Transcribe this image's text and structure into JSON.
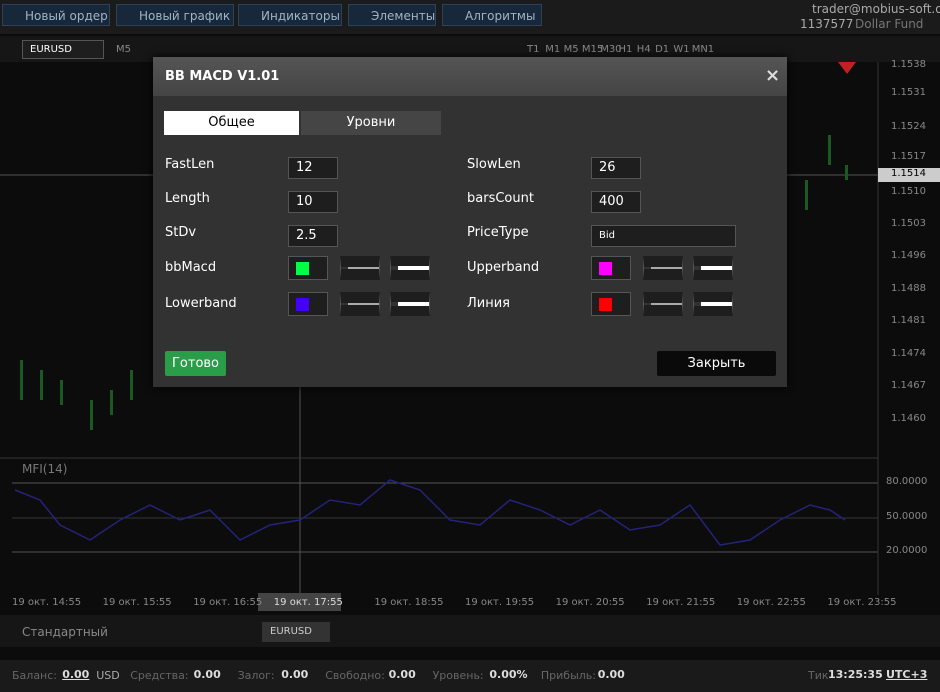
{
  "toolbar": {
    "buttons": [
      "Новый ордер",
      "Новый график",
      "Индикаторы",
      "Элементы",
      "Алгоритмы"
    ],
    "account": {
      "email": "trader@mobius-soft.org",
      "id": "1137577",
      "name": "Dollar Fund"
    }
  },
  "chart": {
    "symbol": "EURUSD",
    "timeframe": "M5",
    "timeframes": [
      "T1",
      "M1",
      "M5",
      "M15",
      "M30",
      "H1",
      "H4",
      "D1",
      "W1",
      "MN1"
    ],
    "price_axis": [
      "1.1538",
      "1.1531",
      "1.1524",
      "1.1517",
      "1.1514",
      "1.1510",
      "1.1503",
      "1.1496",
      "1.1488",
      "1.1481",
      "1.1474",
      "1.1467",
      "1.1460"
    ],
    "indicator": "MFI(14)",
    "indicator_axis": [
      "80.0000",
      "50.0000",
      "20.0000"
    ],
    "time_axis": [
      "19 окт. 14:55",
      "19 окт. 15:55",
      "19 окт. 16:55",
      "19 окт. 17:55",
      "19 окт. 18:55",
      "19 окт. 19:55",
      "19 окт. 20:55",
      "19 окт. 21:55",
      "19 окт. 22:55",
      "19 окт. 23:55"
    ]
  },
  "dialog": {
    "title": "BB MACD V1.01",
    "close": "×",
    "tabs": [
      "Общее",
      "Уровни"
    ],
    "fields": [
      {
        "label": "FastLen",
        "value": 12
      },
      {
        "label": "SlowLen",
        "value": 26
      },
      {
        "label": "Length",
        "value": 10
      },
      {
        "label": "barsCount",
        "value": 400
      },
      {
        "label": "StDv",
        "value": 2.5
      },
      {
        "label": "PriceType",
        "value": "Bid"
      }
    ],
    "colors": [
      {
        "label": "bbMacd",
        "color": "#00ff44"
      },
      {
        "label": "Upperband",
        "color": "#ff00ff"
      },
      {
        "label": "Lowerband",
        "color": "#4400ff"
      },
      {
        "label": "Линия",
        "color": "#ff0000"
      }
    ],
    "ok": "Готово",
    "cancel": "Закрыть"
  },
  "bottom": {
    "layout": "Стандартный",
    "tab": "EURUSD"
  },
  "status": {
    "items": [
      {
        "label": "Баланс:",
        "value": "0.00",
        "unit": "USD"
      },
      {
        "label": "Средства:",
        "value": "0.00"
      },
      {
        "label": "Залог:",
        "value": "0.00"
      },
      {
        "label": "Свободно:",
        "value": "0.00"
      },
      {
        "label": "Уровень:",
        "value": "0.00%"
      },
      {
        "label": "Прибыль:",
        "value": "0.00"
      }
    ],
    "tick_label": "Тик",
    "time": "13:25:35",
    "tz": "UTC+3"
  }
}
